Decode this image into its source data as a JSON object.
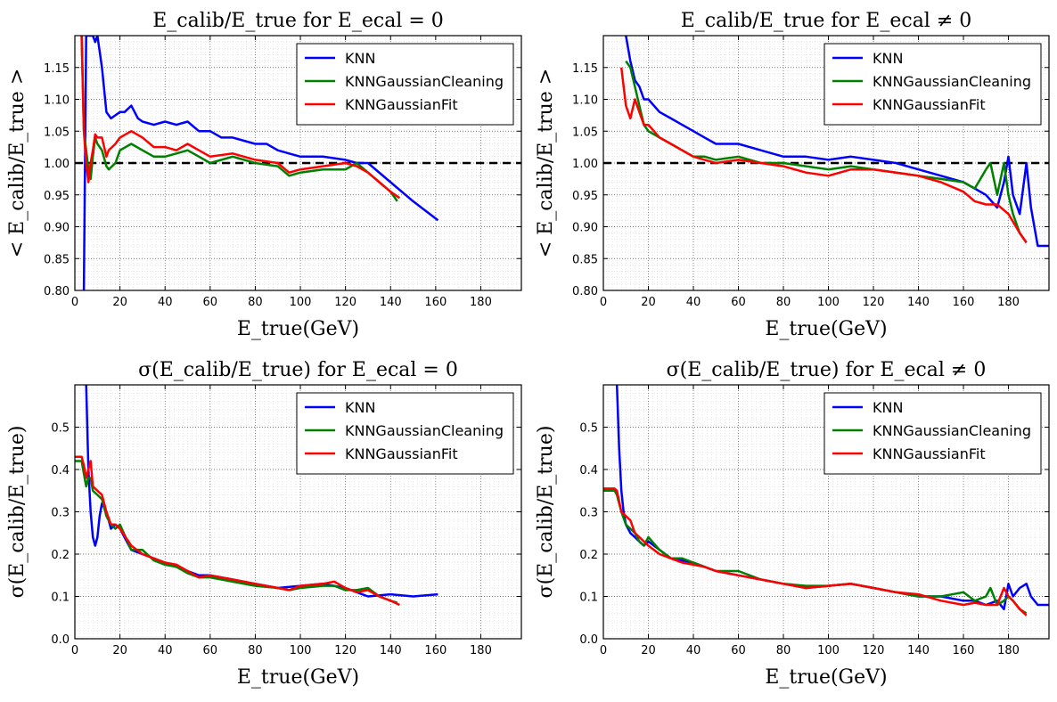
{
  "colors": {
    "KNN": "#0000ff",
    "KNNGaussianCleaning": "#008000",
    "KNNGaussianFit": "#ff0000",
    "reference": "#000000"
  },
  "chart_data": [
    {
      "type": "line",
      "title": "E_calib/E_true for E_ecal = 0",
      "xlabel": "E_true(GeV)",
      "ylabel": "< E_calib/E_true >",
      "xlim": [
        0,
        198
      ],
      "ylim": [
        0.8,
        1.2
      ],
      "xticks": [
        "0",
        "20",
        "40",
        "60",
        "80",
        "100",
        "120",
        "140",
        "160",
        "180"
      ],
      "yticks": [
        "0.80",
        "0.85",
        "0.90",
        "0.95",
        "1.00",
        "1.05",
        "1.10",
        "1.15"
      ],
      "grid": true,
      "legend": "top-right",
      "reference_line": 1.0,
      "series": [
        {
          "name": "KNN",
          "x": [
            4,
            5,
            6,
            8,
            9,
            10,
            12,
            14,
            16,
            18,
            20,
            22,
            25,
            28,
            30,
            35,
            40,
            45,
            50,
            55,
            60,
            65,
            70,
            75,
            80,
            85,
            90,
            95,
            100,
            110,
            120,
            125,
            130,
            140,
            150,
            161
          ],
          "y": [
            0.8,
            1.2,
            1.2,
            1.2,
            1.19,
            1.2,
            1.15,
            1.08,
            1.07,
            1.075,
            1.08,
            1.08,
            1.09,
            1.07,
            1.065,
            1.06,
            1.065,
            1.06,
            1.065,
            1.05,
            1.05,
            1.04,
            1.04,
            1.035,
            1.03,
            1.03,
            1.02,
            1.015,
            1.01,
            1.01,
            1.005,
            1.0,
            1.0,
            0.97,
            0.94,
            0.91
          ]
        },
        {
          "name": "KNNGaussianCleaning",
          "x": [
            3,
            4,
            5,
            6,
            7,
            8,
            9,
            10,
            12,
            14,
            15,
            18,
            20,
            25,
            30,
            35,
            40,
            45,
            50,
            55,
            60,
            70,
            80,
            90,
            95,
            100,
            110,
            120,
            125,
            130,
            135,
            140,
            143
          ],
          "y": [
            1.2,
            1.05,
            1.02,
            0.99,
            0.975,
            1.01,
            1.04,
            1.03,
            1.02,
            0.995,
            0.99,
            1.0,
            1.02,
            1.03,
            1.02,
            1.01,
            1.01,
            1.015,
            1.02,
            1.01,
            1.0,
            1.01,
            1.0,
            0.995,
            0.98,
            0.985,
            0.99,
            0.99,
            1.0,
            0.985,
            0.97,
            0.955,
            0.94
          ]
        },
        {
          "name": "KNNGaussianFit",
          "x": [
            3,
            4,
            5,
            6,
            7,
            8,
            9,
            10,
            12,
            14,
            15,
            18,
            20,
            25,
            30,
            35,
            40,
            45,
            50,
            55,
            60,
            70,
            80,
            90,
            95,
            100,
            110,
            120,
            125,
            130,
            135,
            140,
            144
          ],
          "y": [
            1.2,
            1.05,
            1.0,
            0.97,
            1.0,
            1.02,
            1.045,
            1.04,
            1.04,
            1.01,
            1.02,
            1.03,
            1.04,
            1.05,
            1.04,
            1.025,
            1.025,
            1.02,
            1.03,
            1.02,
            1.01,
            1.015,
            1.005,
            1.0,
            0.985,
            0.99,
            0.995,
            1.0,
            0.995,
            0.985,
            0.97,
            0.955,
            0.945
          ]
        }
      ]
    },
    {
      "type": "line",
      "title": "E_calib/E_true for E_ecal ≠ 0",
      "xlabel": "E_true(GeV)",
      "ylabel": "< E_calib/E_true >",
      "xlim": [
        0,
        198
      ],
      "ylim": [
        0.8,
        1.2
      ],
      "xticks": [
        "0",
        "20",
        "40",
        "60",
        "80",
        "100",
        "120",
        "140",
        "160",
        "180"
      ],
      "yticks": [
        "0.80",
        "0.85",
        "0.90",
        "0.95",
        "1.00",
        "1.05",
        "1.10",
        "1.15"
      ],
      "grid": true,
      "legend": "top-right",
      "reference_line": 1.0,
      "series": [
        {
          "name": "KNN",
          "x": [
            10,
            12,
            14,
            16,
            18,
            20,
            25,
            30,
            35,
            40,
            45,
            50,
            60,
            70,
            80,
            90,
            100,
            110,
            120,
            130,
            140,
            150,
            160,
            165,
            170,
            175,
            178,
            180,
            182,
            185,
            188,
            190,
            193,
            198
          ],
          "y": [
            1.2,
            1.16,
            1.13,
            1.12,
            1.1,
            1.1,
            1.08,
            1.07,
            1.06,
            1.05,
            1.04,
            1.03,
            1.03,
            1.02,
            1.01,
            1.01,
            1.005,
            1.01,
            1.005,
            1.0,
            0.99,
            0.98,
            0.97,
            0.96,
            0.95,
            0.93,
            0.97,
            1.01,
            0.95,
            0.92,
            1.0,
            0.93,
            0.87,
            0.87
          ]
        },
        {
          "name": "KNNGaussianCleaning",
          "x": [
            10,
            12,
            14,
            16,
            18,
            20,
            25,
            30,
            35,
            40,
            45,
            50,
            60,
            70,
            80,
            90,
            100,
            110,
            120,
            130,
            140,
            150,
            160,
            165,
            170,
            172,
            175,
            178,
            180,
            182,
            185,
            188
          ],
          "y": [
            1.16,
            1.15,
            1.12,
            1.09,
            1.06,
            1.05,
            1.04,
            1.03,
            1.02,
            1.01,
            1.01,
            1.005,
            1.01,
            1.0,
            1.0,
            0.995,
            0.99,
            0.995,
            0.99,
            0.985,
            0.98,
            0.975,
            0.97,
            0.96,
            0.99,
            1.0,
            0.95,
            1.0,
            0.95,
            0.92,
            0.89,
            0.875
          ]
        },
        {
          "name": "KNNGaussianFit",
          "x": [
            8,
            10,
            12,
            14,
            16,
            18,
            20,
            25,
            30,
            35,
            40,
            45,
            50,
            60,
            70,
            80,
            90,
            100,
            110,
            120,
            130,
            140,
            150,
            160,
            165,
            170,
            175,
            180,
            185,
            188
          ],
          "y": [
            1.15,
            1.09,
            1.07,
            1.1,
            1.08,
            1.06,
            1.06,
            1.04,
            1.03,
            1.02,
            1.01,
            1.005,
            1.0,
            1.005,
            1.0,
            0.995,
            0.985,
            0.98,
            0.99,
            0.99,
            0.985,
            0.98,
            0.97,
            0.955,
            0.94,
            0.935,
            0.935,
            0.92,
            0.89,
            0.875
          ]
        }
      ]
    },
    {
      "type": "line",
      "title": "σ(E_calib/E_true) for E_ecal = 0",
      "xlabel": "E_true(GeV)",
      "ylabel": "σ(E_calib/E_true)",
      "xlim": [
        0,
        198
      ],
      "ylim": [
        0.0,
        0.6
      ],
      "xticks": [
        "0",
        "20",
        "40",
        "60",
        "80",
        "100",
        "120",
        "140",
        "160",
        "180"
      ],
      "yticks": [
        "0.0",
        "0.1",
        "0.2",
        "0.3",
        "0.4",
        "0.5"
      ],
      "grid": true,
      "legend": "top-right",
      "series": [
        {
          "name": "KNN",
          "x": [
            5,
            6,
            7,
            8,
            9,
            10,
            11,
            12,
            14,
            16,
            18,
            20,
            25,
            30,
            35,
            40,
            45,
            50,
            55,
            60,
            70,
            80,
            90,
            100,
            110,
            120,
            125,
            130,
            140,
            150,
            161
          ],
          "y": [
            0.6,
            0.4,
            0.3,
            0.24,
            0.22,
            0.24,
            0.29,
            0.32,
            0.3,
            0.26,
            0.27,
            0.26,
            0.21,
            0.2,
            0.19,
            0.18,
            0.17,
            0.16,
            0.15,
            0.15,
            0.14,
            0.13,
            0.12,
            0.125,
            0.13,
            0.12,
            0.11,
            0.1,
            0.105,
            0.1,
            0.105
          ]
        },
        {
          "name": "KNNGaussianCleaning",
          "x": [
            0,
            3,
            4,
            5,
            6,
            7,
            8,
            10,
            12,
            14,
            16,
            18,
            20,
            25,
            30,
            35,
            40,
            45,
            50,
            55,
            60,
            70,
            80,
            90,
            95,
            100,
            110,
            115,
            120,
            125,
            130,
            135,
            140,
            143
          ],
          "y": [
            0.42,
            0.42,
            0.39,
            0.36,
            0.38,
            0.38,
            0.35,
            0.34,
            0.33,
            0.29,
            0.27,
            0.26,
            0.27,
            0.21,
            0.21,
            0.185,
            0.175,
            0.17,
            0.155,
            0.145,
            0.145,
            0.135,
            0.125,
            0.12,
            0.115,
            0.12,
            0.125,
            0.125,
            0.115,
            0.115,
            0.12,
            0.1,
            0.09,
            0.085
          ]
        },
        {
          "name": "KNNGaussianFit",
          "x": [
            0,
            3,
            4,
            5,
            6,
            7,
            8,
            10,
            12,
            14,
            16,
            18,
            20,
            25,
            30,
            35,
            40,
            45,
            50,
            55,
            60,
            70,
            80,
            90,
            95,
            100,
            110,
            115,
            120,
            125,
            130,
            135,
            140,
            144
          ],
          "y": [
            0.43,
            0.43,
            0.41,
            0.38,
            0.4,
            0.42,
            0.36,
            0.35,
            0.34,
            0.3,
            0.27,
            0.27,
            0.26,
            0.22,
            0.2,
            0.19,
            0.18,
            0.175,
            0.16,
            0.145,
            0.15,
            0.14,
            0.13,
            0.12,
            0.115,
            0.125,
            0.13,
            0.135,
            0.12,
            0.11,
            0.115,
            0.1,
            0.09,
            0.08
          ]
        }
      ]
    },
    {
      "type": "line",
      "title": "σ(E_calib/E_true) for E_ecal ≠ 0",
      "xlabel": "E_true(GeV)",
      "ylabel": "σ(E_calib/E_true)",
      "xlim": [
        0,
        198
      ],
      "ylim": [
        0.0,
        0.6
      ],
      "xticks": [
        "0",
        "20",
        "40",
        "60",
        "80",
        "100",
        "120",
        "140",
        "160",
        "180"
      ],
      "yticks": [
        "0.0",
        "0.1",
        "0.2",
        "0.3",
        "0.4",
        "0.5"
      ],
      "grid": true,
      "legend": "top-right",
      "series": [
        {
          "name": "KNN",
          "x": [
            6,
            7,
            8,
            9,
            10,
            12,
            14,
            16,
            18,
            20,
            25,
            30,
            35,
            40,
            45,
            50,
            60,
            70,
            80,
            90,
            100,
            110,
            120,
            130,
            140,
            150,
            160,
            165,
            170,
            175,
            178,
            180,
            182,
            185,
            188,
            190,
            193,
            198
          ],
          "y": [
            0.6,
            0.45,
            0.35,
            0.3,
            0.27,
            0.25,
            0.24,
            0.23,
            0.22,
            0.23,
            0.21,
            0.19,
            0.185,
            0.18,
            0.17,
            0.16,
            0.15,
            0.14,
            0.13,
            0.12,
            0.125,
            0.13,
            0.12,
            0.11,
            0.1,
            0.1,
            0.09,
            0.09,
            0.08,
            0.09,
            0.07,
            0.13,
            0.1,
            0.12,
            0.13,
            0.1,
            0.08,
            0.08
          ]
        },
        {
          "name": "KNNGaussianCleaning",
          "x": [
            0,
            3,
            5,
            6,
            8,
            10,
            12,
            14,
            16,
            18,
            20,
            25,
            30,
            35,
            40,
            45,
            50,
            60,
            70,
            80,
            90,
            100,
            110,
            120,
            130,
            140,
            150,
            160,
            165,
            170,
            172,
            175,
            178,
            180,
            182,
            185,
            188
          ],
          "y": [
            0.35,
            0.35,
            0.35,
            0.34,
            0.3,
            0.27,
            0.26,
            0.25,
            0.23,
            0.22,
            0.24,
            0.21,
            0.19,
            0.19,
            0.18,
            0.17,
            0.16,
            0.16,
            0.14,
            0.13,
            0.125,
            0.125,
            0.13,
            0.12,
            0.11,
            0.1,
            0.1,
            0.11,
            0.09,
            0.1,
            0.12,
            0.08,
            0.09,
            0.1,
            0.09,
            0.07,
            0.06
          ]
        },
        {
          "name": "KNNGaussianFit",
          "x": [
            0,
            3,
            5,
            6,
            8,
            10,
            12,
            14,
            16,
            18,
            20,
            25,
            30,
            35,
            40,
            45,
            50,
            60,
            70,
            80,
            90,
            100,
            110,
            120,
            130,
            140,
            150,
            160,
            165,
            170,
            175,
            178,
            180,
            182,
            185,
            188
          ],
          "y": [
            0.355,
            0.355,
            0.355,
            0.35,
            0.3,
            0.29,
            0.28,
            0.25,
            0.24,
            0.23,
            0.22,
            0.2,
            0.19,
            0.18,
            0.175,
            0.17,
            0.16,
            0.15,
            0.14,
            0.13,
            0.12,
            0.125,
            0.13,
            0.12,
            0.11,
            0.105,
            0.09,
            0.08,
            0.085,
            0.08,
            0.08,
            0.12,
            0.1,
            0.09,
            0.07,
            0.055
          ]
        }
      ]
    }
  ]
}
